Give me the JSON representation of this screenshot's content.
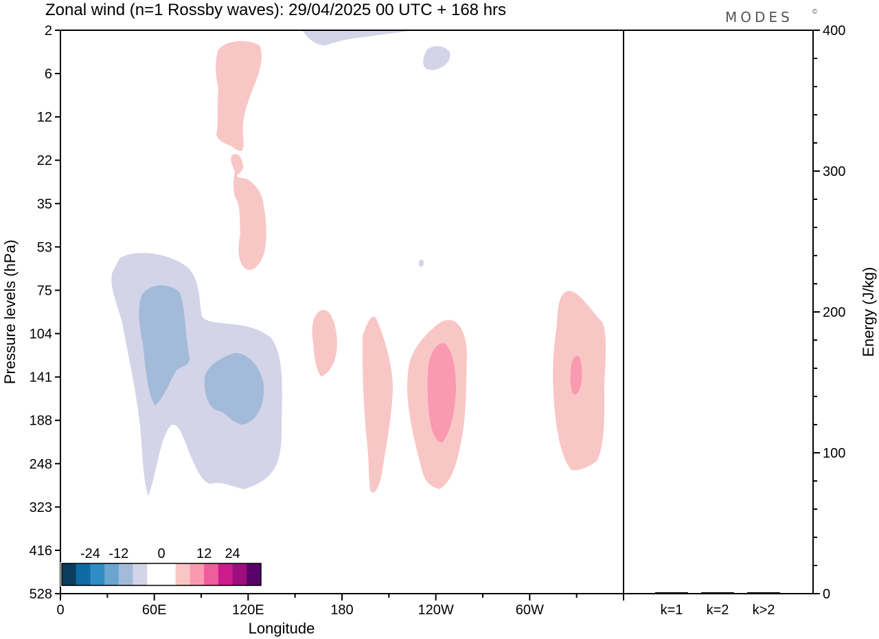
{
  "chart_data": {
    "type": "contour",
    "title": "Zonal wind (n=1 Rossby waves):  29/04/2025  00 UTC  + 168 hrs",
    "brand": "MODES",
    "brand_mark": "©",
    "xlabel": "Longitude",
    "ylabel": "Pressure levels (hPa)",
    "y2label": "Energy (J/kg)",
    "x_ticks": [
      "0",
      "60E",
      "120E",
      "180",
      "120W",
      "60W"
    ],
    "x_tick_values": [
      0,
      60,
      120,
      180,
      240,
      300
    ],
    "xlim": [
      0,
      360
    ],
    "y_ticks": [
      "2",
      "6",
      "12",
      "22",
      "35",
      "53",
      "75",
      "104",
      "141",
      "188",
      "248",
      "323",
      "416",
      "528"
    ],
    "y2_ticks": [
      "0",
      "100",
      "200",
      "300",
      "400"
    ],
    "y2lim": [
      0,
      400
    ],
    "energy_categories": [
      "k=1",
      "k=2",
      "k>2"
    ],
    "energy_values": [
      1,
      1,
      1
    ],
    "colorbar": {
      "labels": [
        "-24",
        "-12",
        "0",
        "12",
        "24"
      ],
      "colors": [
        "#0a3d5e",
        "#0f6aa3",
        "#2f8cc4",
        "#6aa6cf",
        "#a3bad9",
        "#d3d4e8",
        "#ffffff",
        "#ffffff",
        "#f9c6c6",
        "#f99ab1",
        "#ee5d9c",
        "#cc1c8c",
        "#9e0d7e",
        "#5a006a"
      ]
    },
    "contour_colors": {
      "neg_light": "#d3d4e8",
      "neg_mid": "#a3bad9",
      "pos_light": "#f9c6c6",
      "pos_mid": "#f99ab1"
    }
  }
}
